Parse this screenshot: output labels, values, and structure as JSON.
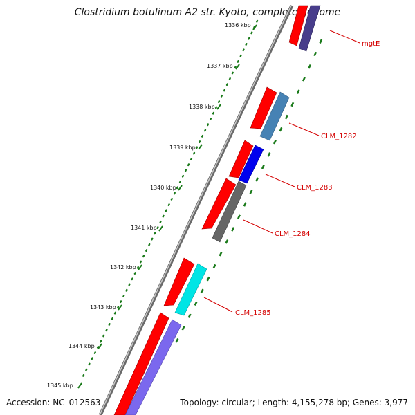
{
  "title": "Clostridium botulinum A2 str. Kyoto, complete genome",
  "accession": "Accession: NC_012563",
  "summary": "Topology: circular; Length: 4,155,278 bp; Genes: 3,977",
  "ticks": [
    "1336 kbp",
    "1337 kbp",
    "1338 kbp",
    "1339 kbp",
    "1340 kbp",
    "1341 kbp",
    "1342 kbp",
    "1343 kbp",
    "1344 kbp",
    "1345 kbp"
  ],
  "genes": [
    {
      "name": "mgtE",
      "color": "#483d8b"
    },
    {
      "name": "CLM_1282",
      "color": "#4682b4"
    },
    {
      "name": "CLM_1283",
      "color": "#0000ee"
    },
    {
      "name": "CLM_1284",
      "color": "#666666"
    },
    {
      "name": "CLM_1285",
      "color": "#00e5e5"
    }
  ],
  "colors": {
    "backbone": "#808080",
    "cds": "#ff0000",
    "tick": "#1a7a1a",
    "gene_label": "#d40000",
    "extra_feature": "#7b68ee"
  }
}
